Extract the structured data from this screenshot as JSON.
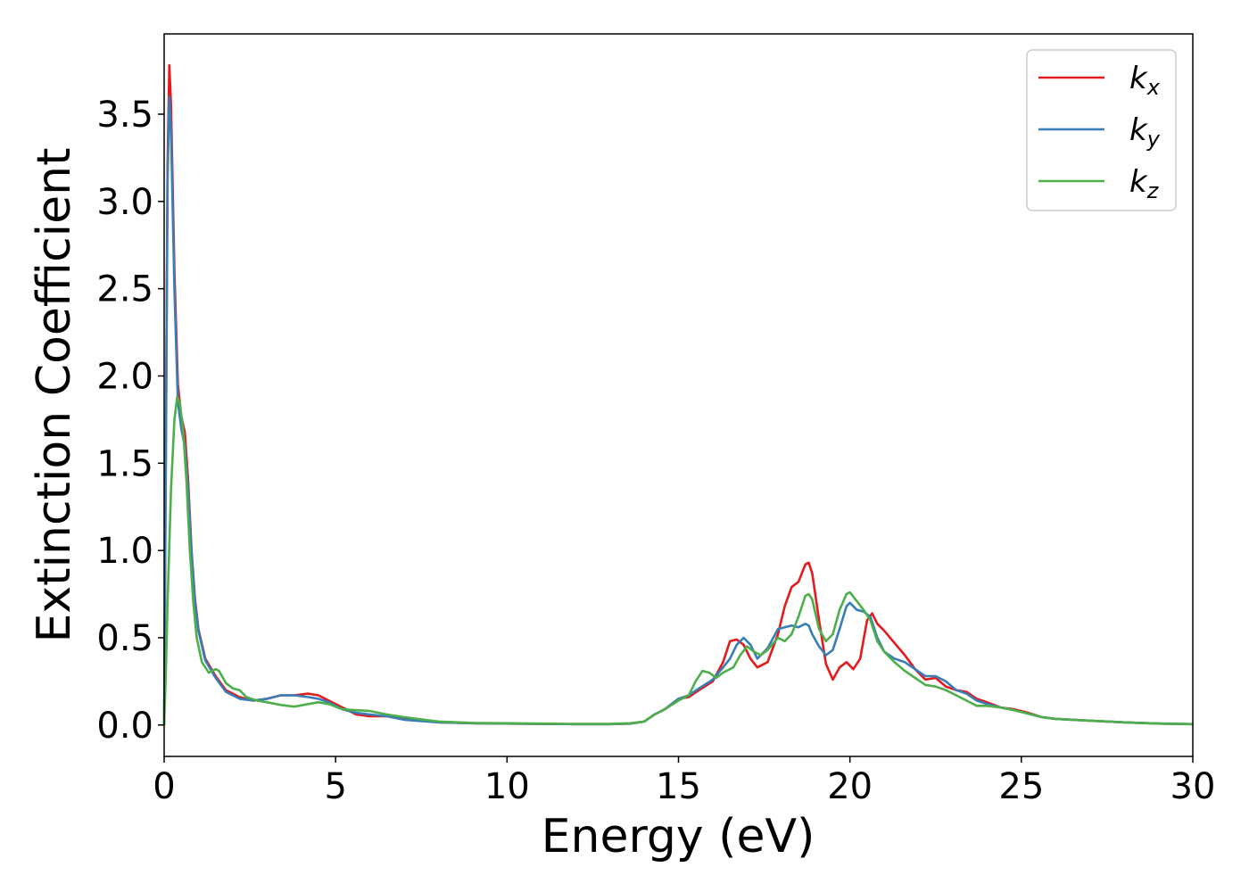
{
  "chart_data": {
    "type": "line",
    "title": "",
    "xlabel": "Energy (eV)",
    "ylabel": "Extinction Coefficient",
    "xlim": [
      0,
      30
    ],
    "ylim": [
      -0.18,
      3.96
    ],
    "xticks": [
      0,
      5,
      10,
      15,
      20,
      25,
      30
    ],
    "xtick_labels": [
      "0",
      "5",
      "10",
      "15",
      "20",
      "25",
      "30"
    ],
    "yticks": [
      0.0,
      0.5,
      1.0,
      1.5,
      2.0,
      2.5,
      3.0,
      3.5
    ],
    "ytick_labels": [
      "0.0",
      "0.5",
      "1.0",
      "1.5",
      "2.0",
      "2.5",
      "3.0",
      "3.5"
    ],
    "grid": false,
    "legend_position": "top-right",
    "series": [
      {
        "name": "k",
        "subscript": "x",
        "color": "#e41a1c",
        "points": [
          [
            0,
            0
          ],
          [
            0.05,
            1.6
          ],
          [
            0.1,
            3.2
          ],
          [
            0.15,
            3.78
          ],
          [
            0.2,
            3.55
          ],
          [
            0.3,
            2.6
          ],
          [
            0.4,
            1.95
          ],
          [
            0.5,
            1.77
          ],
          [
            0.6,
            1.68
          ],
          [
            0.7,
            1.4
          ],
          [
            0.8,
            1.0
          ],
          [
            0.9,
            0.72
          ],
          [
            1.0,
            0.55
          ],
          [
            1.2,
            0.38
          ],
          [
            1.5,
            0.28
          ],
          [
            1.8,
            0.2
          ],
          [
            2.2,
            0.16
          ],
          [
            2.6,
            0.14
          ],
          [
            3.0,
            0.15
          ],
          [
            3.4,
            0.17
          ],
          [
            3.8,
            0.17
          ],
          [
            4.2,
            0.18
          ],
          [
            4.5,
            0.17
          ],
          [
            4.8,
            0.14
          ],
          [
            5.2,
            0.1
          ],
          [
            5.6,
            0.06
          ],
          [
            6.0,
            0.05
          ],
          [
            6.5,
            0.05
          ],
          [
            7.0,
            0.035
          ],
          [
            8.0,
            0.015
          ],
          [
            9.0,
            0.01
          ],
          [
            10.0,
            0.008
          ],
          [
            11.0,
            0.006
          ],
          [
            12.0,
            0.005
          ],
          [
            13.0,
            0.005
          ],
          [
            13.6,
            0.008
          ],
          [
            14.0,
            0.02
          ],
          [
            14.3,
            0.06
          ],
          [
            14.6,
            0.09
          ],
          [
            15.0,
            0.15
          ],
          [
            15.3,
            0.16
          ],
          [
            15.6,
            0.2
          ],
          [
            16.0,
            0.25
          ],
          [
            16.3,
            0.36
          ],
          [
            16.5,
            0.48
          ],
          [
            16.7,
            0.49
          ],
          [
            16.9,
            0.46
          ],
          [
            17.1,
            0.38
          ],
          [
            17.3,
            0.33
          ],
          [
            17.6,
            0.36
          ],
          [
            17.9,
            0.52
          ],
          [
            18.1,
            0.68
          ],
          [
            18.3,
            0.79
          ],
          [
            18.5,
            0.82
          ],
          [
            18.7,
            0.92
          ],
          [
            18.8,
            0.93
          ],
          [
            18.9,
            0.87
          ],
          [
            19.1,
            0.6
          ],
          [
            19.3,
            0.35
          ],
          [
            19.5,
            0.26
          ],
          [
            19.7,
            0.33
          ],
          [
            19.9,
            0.36
          ],
          [
            20.1,
            0.32
          ],
          [
            20.3,
            0.38
          ],
          [
            20.5,
            0.6
          ],
          [
            20.65,
            0.64
          ],
          [
            20.8,
            0.58
          ],
          [
            21.0,
            0.54
          ],
          [
            21.3,
            0.47
          ],
          [
            21.6,
            0.4
          ],
          [
            21.9,
            0.32
          ],
          [
            22.2,
            0.26
          ],
          [
            22.5,
            0.27
          ],
          [
            22.8,
            0.22
          ],
          [
            23.1,
            0.2
          ],
          [
            23.4,
            0.19
          ],
          [
            23.7,
            0.15
          ],
          [
            24.0,
            0.13
          ],
          [
            24.4,
            0.1
          ],
          [
            24.8,
            0.09
          ],
          [
            25.2,
            0.07
          ],
          [
            25.6,
            0.045
          ],
          [
            26.0,
            0.035
          ],
          [
            27.0,
            0.025
          ],
          [
            28.0,
            0.015
          ],
          [
            29.0,
            0.008
          ],
          [
            30.0,
            0.005
          ]
        ]
      },
      {
        "name": "k",
        "subscript": "y",
        "color": "#377eb8",
        "points": [
          [
            0,
            0
          ],
          [
            0.05,
            1.5
          ],
          [
            0.1,
            3.1
          ],
          [
            0.15,
            3.6
          ],
          [
            0.2,
            3.4
          ],
          [
            0.3,
            2.5
          ],
          [
            0.4,
            1.85
          ],
          [
            0.5,
            1.7
          ],
          [
            0.6,
            1.6
          ],
          [
            0.7,
            1.35
          ],
          [
            0.8,
            0.98
          ],
          [
            0.9,
            0.7
          ],
          [
            1.0,
            0.54
          ],
          [
            1.2,
            0.37
          ],
          [
            1.5,
            0.27
          ],
          [
            1.8,
            0.19
          ],
          [
            2.2,
            0.15
          ],
          [
            2.6,
            0.14
          ],
          [
            3.0,
            0.15
          ],
          [
            3.4,
            0.17
          ],
          [
            3.8,
            0.17
          ],
          [
            4.2,
            0.16
          ],
          [
            4.5,
            0.15
          ],
          [
            4.8,
            0.13
          ],
          [
            5.2,
            0.09
          ],
          [
            5.6,
            0.07
          ],
          [
            6.0,
            0.06
          ],
          [
            6.5,
            0.05
          ],
          [
            7.0,
            0.03
          ],
          [
            8.0,
            0.015
          ],
          [
            9.0,
            0.01
          ],
          [
            10.0,
            0.008
          ],
          [
            11.0,
            0.006
          ],
          [
            12.0,
            0.005
          ],
          [
            13.0,
            0.005
          ],
          [
            13.6,
            0.008
          ],
          [
            14.0,
            0.02
          ],
          [
            14.3,
            0.06
          ],
          [
            14.6,
            0.09
          ],
          [
            15.0,
            0.15
          ],
          [
            15.3,
            0.17
          ],
          [
            15.6,
            0.21
          ],
          [
            16.0,
            0.26
          ],
          [
            16.3,
            0.33
          ],
          [
            16.5,
            0.38
          ],
          [
            16.7,
            0.46
          ],
          [
            16.9,
            0.5
          ],
          [
            17.1,
            0.46
          ],
          [
            17.3,
            0.38
          ],
          [
            17.6,
            0.44
          ],
          [
            17.9,
            0.55
          ],
          [
            18.1,
            0.56
          ],
          [
            18.3,
            0.57
          ],
          [
            18.5,
            0.56
          ],
          [
            18.7,
            0.58
          ],
          [
            18.8,
            0.57
          ],
          [
            18.9,
            0.52
          ],
          [
            19.1,
            0.45
          ],
          [
            19.3,
            0.4
          ],
          [
            19.5,
            0.43
          ],
          [
            19.7,
            0.55
          ],
          [
            19.9,
            0.68
          ],
          [
            20.0,
            0.7
          ],
          [
            20.2,
            0.66
          ],
          [
            20.4,
            0.65
          ],
          [
            20.6,
            0.62
          ],
          [
            20.8,
            0.5
          ],
          [
            21.0,
            0.42
          ],
          [
            21.3,
            0.38
          ],
          [
            21.6,
            0.36
          ],
          [
            21.9,
            0.32
          ],
          [
            22.2,
            0.28
          ],
          [
            22.5,
            0.28
          ],
          [
            22.8,
            0.25
          ],
          [
            23.1,
            0.2
          ],
          [
            23.4,
            0.18
          ],
          [
            23.7,
            0.14
          ],
          [
            24.0,
            0.12
          ],
          [
            24.4,
            0.1
          ],
          [
            24.8,
            0.085
          ],
          [
            25.2,
            0.065
          ],
          [
            25.6,
            0.045
          ],
          [
            26.0,
            0.035
          ],
          [
            27.0,
            0.025
          ],
          [
            28.0,
            0.015
          ],
          [
            29.0,
            0.008
          ],
          [
            30.0,
            0.005
          ]
        ]
      },
      {
        "name": "k",
        "subscript": "z",
        "color": "#4daf4a",
        "points": [
          [
            0,
            0
          ],
          [
            0.05,
            0.3
          ],
          [
            0.1,
            0.7
          ],
          [
            0.2,
            1.35
          ],
          [
            0.3,
            1.75
          ],
          [
            0.38,
            1.88
          ],
          [
            0.45,
            1.85
          ],
          [
            0.55,
            1.7
          ],
          [
            0.65,
            1.4
          ],
          [
            0.75,
            1.0
          ],
          [
            0.85,
            0.7
          ],
          [
            0.95,
            0.5
          ],
          [
            1.1,
            0.36
          ],
          [
            1.3,
            0.3
          ],
          [
            1.5,
            0.32
          ],
          [
            1.6,
            0.31
          ],
          [
            1.8,
            0.24
          ],
          [
            2.0,
            0.21
          ],
          [
            2.2,
            0.2
          ],
          [
            2.4,
            0.16
          ],
          [
            2.7,
            0.14
          ],
          [
            3.0,
            0.13
          ],
          [
            3.4,
            0.115
          ],
          [
            3.8,
            0.105
          ],
          [
            4.2,
            0.12
          ],
          [
            4.5,
            0.13
          ],
          [
            4.8,
            0.12
          ],
          [
            5.2,
            0.09
          ],
          [
            5.6,
            0.085
          ],
          [
            6.0,
            0.08
          ],
          [
            6.5,
            0.06
          ],
          [
            7.0,
            0.045
          ],
          [
            8.0,
            0.02
          ],
          [
            9.0,
            0.012
          ],
          [
            10.0,
            0.01
          ],
          [
            11.0,
            0.008
          ],
          [
            12.0,
            0.006
          ],
          [
            13.0,
            0.006
          ],
          [
            13.6,
            0.01
          ],
          [
            14.0,
            0.02
          ],
          [
            14.3,
            0.06
          ],
          [
            14.6,
            0.09
          ],
          [
            15.0,
            0.14
          ],
          [
            15.3,
            0.17
          ],
          [
            15.5,
            0.25
          ],
          [
            15.7,
            0.31
          ],
          [
            15.9,
            0.3
          ],
          [
            16.1,
            0.27
          ],
          [
            16.3,
            0.3
          ],
          [
            16.6,
            0.33
          ],
          [
            16.8,
            0.4
          ],
          [
            17.0,
            0.45
          ],
          [
            17.2,
            0.42
          ],
          [
            17.4,
            0.4
          ],
          [
            17.6,
            0.43
          ],
          [
            17.9,
            0.5
          ],
          [
            18.1,
            0.48
          ],
          [
            18.3,
            0.52
          ],
          [
            18.5,
            0.62
          ],
          [
            18.7,
            0.74
          ],
          [
            18.8,
            0.75
          ],
          [
            18.9,
            0.72
          ],
          [
            19.1,
            0.55
          ],
          [
            19.3,
            0.48
          ],
          [
            19.5,
            0.52
          ],
          [
            19.7,
            0.66
          ],
          [
            19.9,
            0.75
          ],
          [
            20.0,
            0.76
          ],
          [
            20.2,
            0.71
          ],
          [
            20.4,
            0.66
          ],
          [
            20.6,
            0.6
          ],
          [
            20.8,
            0.48
          ],
          [
            21.0,
            0.42
          ],
          [
            21.3,
            0.36
          ],
          [
            21.6,
            0.31
          ],
          [
            21.9,
            0.27
          ],
          [
            22.2,
            0.23
          ],
          [
            22.5,
            0.22
          ],
          [
            22.8,
            0.2
          ],
          [
            23.1,
            0.17
          ],
          [
            23.4,
            0.14
          ],
          [
            23.7,
            0.11
          ],
          [
            24.0,
            0.11
          ],
          [
            24.4,
            0.1
          ],
          [
            24.8,
            0.085
          ],
          [
            25.2,
            0.065
          ],
          [
            25.6,
            0.045
          ],
          [
            26.0,
            0.035
          ],
          [
            27.0,
            0.025
          ],
          [
            28.0,
            0.015
          ],
          [
            29.0,
            0.008
          ],
          [
            30.0,
            0.005
          ]
        ]
      }
    ]
  }
}
